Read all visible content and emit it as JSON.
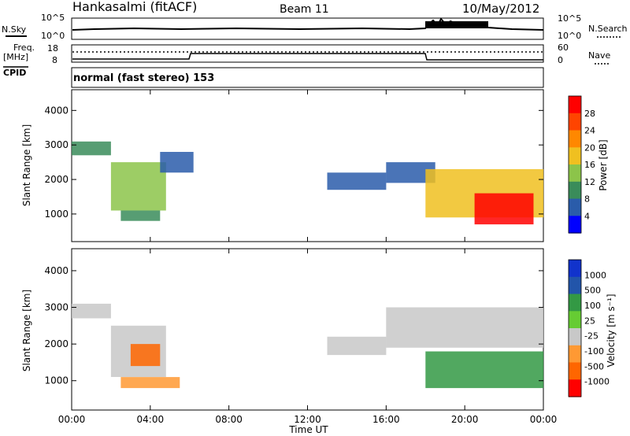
{
  "header": {
    "station": "Hankasalmi (fitACF)",
    "beam": "Beam 11",
    "date": "10/May/2012"
  },
  "noise_panel": {
    "left_label": "N.Sky",
    "right_label": "N.Search",
    "left_ticks": [
      "10^5",
      "10^0"
    ],
    "right_ticks": [
      "10^5",
      "10^0"
    ]
  },
  "freq_panel": {
    "left_label_1": "Freq.",
    "left_label_2": "[MHz]",
    "left_ticks": [
      "18",
      "8"
    ],
    "right_label": "Nave",
    "right_ticks": [
      "60",
      "0"
    ]
  },
  "cpid": {
    "label": "CPID",
    "program": "normal (fast stereo) 153"
  },
  "colors": {
    "power": [
      "#0000ff",
      "#2a5caa",
      "#3a8c5a",
      "#8cc44a",
      "#f0c020",
      "#ff8800",
      "#ff4400",
      "#ff0000"
    ],
    "velocity": [
      "#ff0000",
      "#ff6600",
      "#ff9933",
      "#c8c8c8",
      "#66cc33",
      "#339944",
      "#2255aa",
      "#1133cc"
    ]
  },
  "chart_data": [
    {
      "type": "heatmap",
      "panel": "power",
      "ylabel": "Slant Range [km]",
      "y_ticks": [
        "1000",
        "2000",
        "3000",
        "4000"
      ],
      "colorbar_label": "Power [dB]",
      "colorbar_ticks": [
        "4",
        "8",
        "12",
        "16",
        "20",
        "24",
        "28"
      ],
      "series": [
        {
          "t0": 0.0,
          "t1": 2.0,
          "r0": 2700,
          "r1": 3100,
          "level": 3
        },
        {
          "t0": 2.0,
          "t1": 4.8,
          "r0": 1100,
          "r1": 2500,
          "level": 4
        },
        {
          "t0": 2.5,
          "t1": 4.5,
          "r0": 800,
          "r1": 1100,
          "level": 3
        },
        {
          "t0": 4.5,
          "t1": 6.2,
          "r0": 2200,
          "r1": 2800,
          "level": 2
        },
        {
          "t0": 13.0,
          "t1": 16.0,
          "r0": 1700,
          "r1": 2200,
          "level": 2
        },
        {
          "t0": 16.0,
          "t1": 18.5,
          "r0": 1900,
          "r1": 2500,
          "level": 2
        },
        {
          "t0": 18.0,
          "t1": 24.0,
          "r0": 900,
          "r1": 2300,
          "level": 5
        },
        {
          "t0": 20.5,
          "t1": 23.5,
          "r0": 700,
          "r1": 1600,
          "level": 8
        }
      ]
    },
    {
      "type": "heatmap",
      "panel": "velocity",
      "ylabel": "Slant Range [km]",
      "y_ticks": [
        "1000",
        "2000",
        "3000",
        "4000"
      ],
      "x_ticks": [
        "00:00",
        "04:00",
        "08:00",
        "12:00",
        "16:00",
        "20:00",
        "00:00"
      ],
      "xlabel": "Time UT",
      "colorbar_label": "Velocity [m s⁻¹]",
      "colorbar_ticks": [
        "1000",
        "500",
        "100",
        "25",
        "-25",
        "-100",
        "-500",
        "-1000"
      ],
      "series": [
        {
          "t0": 0.0,
          "t1": 2.0,
          "r0": 2700,
          "r1": 3100,
          "level": 4
        },
        {
          "t0": 2.0,
          "t1": 4.8,
          "r0": 1100,
          "r1": 2500,
          "level": 4
        },
        {
          "t0": 3.0,
          "t1": 4.5,
          "r0": 1400,
          "r1": 2000,
          "level": 2
        },
        {
          "t0": 2.5,
          "t1": 5.5,
          "r0": 800,
          "r1": 1100,
          "level": 3
        },
        {
          "t0": 13.0,
          "t1": 16.0,
          "r0": 1700,
          "r1": 2200,
          "level": 4
        },
        {
          "t0": 16.0,
          "t1": 24.0,
          "r0": 1900,
          "r1": 3000,
          "level": 4
        },
        {
          "t0": 18.0,
          "t1": 24.0,
          "r0": 800,
          "r1": 1800,
          "level": 6
        }
      ]
    }
  ]
}
